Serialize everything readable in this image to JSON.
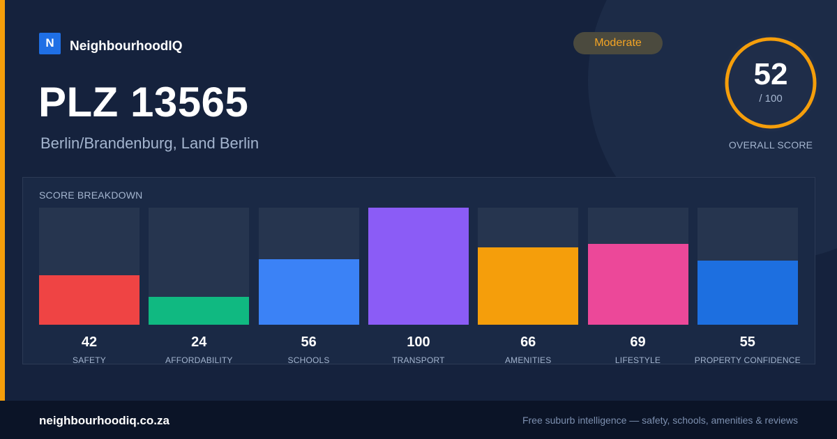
{
  "brand": {
    "logo_letter": "N",
    "name": "NeighbourhoodIQ"
  },
  "badge": {
    "label": "Moderate",
    "color": "#f5a524"
  },
  "header": {
    "title": "PLZ 13565",
    "subtitle": "Berlin/Brandenburg, Land Berlin"
  },
  "overall": {
    "score": "52",
    "max": "/ 100",
    "label": "OVERALL SCORE",
    "fraction": 0.52,
    "ring_color": "#f59e0b"
  },
  "breakdown": {
    "title": "SCORE BREAKDOWN",
    "items": [
      {
        "label": "SAFETY",
        "value": "42",
        "color": "#ef4444"
      },
      {
        "label": "AFFORDABILITY",
        "value": "24",
        "color": "#10b981"
      },
      {
        "label": "SCHOOLS",
        "value": "56",
        "color": "#3b82f6"
      },
      {
        "label": "TRANSPORT",
        "value": "100",
        "color": "#8b5cf6"
      },
      {
        "label": "AMENITIES",
        "value": "66",
        "color": "#f59e0b"
      },
      {
        "label": "LIFESTYLE",
        "value": "69",
        "color": "#ec4899"
      },
      {
        "label": "PROPERTY CONFIDENCE",
        "value": "55",
        "color": "#1d6fe0"
      }
    ]
  },
  "footer": {
    "domain": "neighbourhoodiq.co.za",
    "tagline": "Free suburb intelligence — safety, schools, amenities & reviews"
  },
  "chart_data": {
    "type": "bar",
    "title": "SCORE BREAKDOWN",
    "categories": [
      "SAFETY",
      "AFFORDABILITY",
      "SCHOOLS",
      "TRANSPORT",
      "AMENITIES",
      "LIFESTYLE",
      "PROPERTY CONFIDENCE"
    ],
    "values": [
      42,
      24,
      56,
      100,
      66,
      69,
      55
    ],
    "ylim": [
      0,
      100
    ],
    "grid": false
  }
}
